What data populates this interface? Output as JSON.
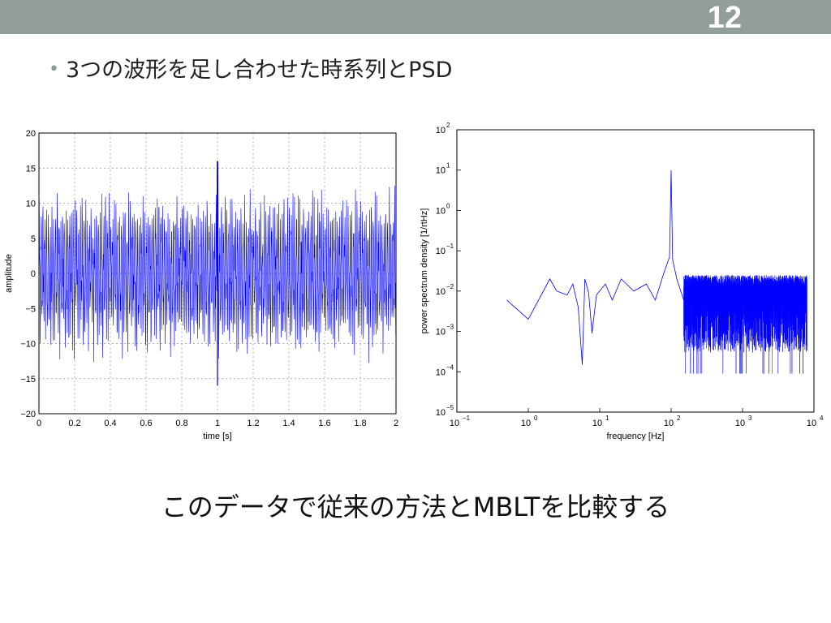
{
  "slide": {
    "number": "12",
    "bullet": "3つの波形を足し合わせた時系列とPSD",
    "footer": "このデータで従来の方法とMBLTを比較する",
    "accent_color": "#929f98",
    "line_color": "#0000ff"
  },
  "chart_data": [
    {
      "type": "line",
      "xlabel": "time [s]",
      "ylabel": "amplitude",
      "xlim": [
        0,
        2
      ],
      "ylim": [
        -20,
        20
      ],
      "xticks": [
        0,
        0.2,
        0.4,
        0.6,
        0.8,
        1,
        1.2,
        1.4,
        1.6,
        1.8,
        2
      ],
      "xtick_labels": [
        "0",
        "0.2",
        "0.4",
        "0.6",
        "0.8",
        "1",
        "1.2",
        "1.4",
        "1.6",
        "1.8",
        "2"
      ],
      "yticks": [
        20,
        15,
        10,
        5,
        0,
        -5,
        -10,
        -15,
        -20
      ],
      "ytick_labels": [
        "20",
        "15",
        "10",
        "5",
        "0",
        "−5",
        "−10",
        "−15",
        "−20"
      ],
      "grid": true,
      "signal": {
        "dominant_frequency_hz": 100,
        "typical_amplitude_range": [
          -12,
          12
        ],
        "peak_time_s": 1.0,
        "peak_max": 16,
        "peak_min": -16
      }
    },
    {
      "type": "line",
      "xlabel": "frequency [Hz]",
      "ylabel": "power spectrum density [1/rtHz]",
      "xscale": "log",
      "yscale": "log",
      "xlim": [
        0.1,
        10000
      ],
      "ylim": [
        1e-05,
        100
      ],
      "xtick_exponents": [
        "−1",
        "0",
        "1",
        "2",
        "3",
        "4"
      ],
      "ytick_exponents": [
        "2",
        "1",
        "0",
        "−1",
        "−2",
        "−3",
        "−4",
        "−5"
      ],
      "tick_base": "10",
      "grid": false,
      "points": [
        [
          0.5,
          0.006
        ],
        [
          1.0,
          0.002
        ],
        [
          2.0,
          0.02
        ],
        [
          2.5,
          0.01
        ],
        [
          3.5,
          0.008
        ],
        [
          4.2,
          0.015
        ],
        [
          5.0,
          0.004
        ],
        [
          5.7,
          0.00015
        ],
        [
          6.2,
          0.02
        ],
        [
          7.0,
          0.009
        ],
        [
          7.8,
          0.0009
        ],
        [
          9.0,
          0.008
        ],
        [
          12,
          0.015
        ],
        [
          15,
          0.006
        ],
        [
          20,
          0.02
        ],
        [
          30,
          0.01
        ],
        [
          45,
          0.015
        ],
        [
          60,
          0.006
        ],
        [
          80,
          0.03
        ],
        [
          95,
          0.07
        ],
        [
          100,
          10
        ],
        [
          105,
          0.06
        ],
        [
          120,
          0.02
        ],
        [
          150,
          0.006
        ],
        [
          300,
          0.008
        ],
        [
          1000,
          0.01
        ],
        [
          3000,
          0.009
        ],
        [
          8000,
          0.009
        ]
      ],
      "noise_floor": {
        "from_hz": 150,
        "to_hz": 8000,
        "upper": 0.025,
        "lower": 0.0003
      }
    }
  ]
}
